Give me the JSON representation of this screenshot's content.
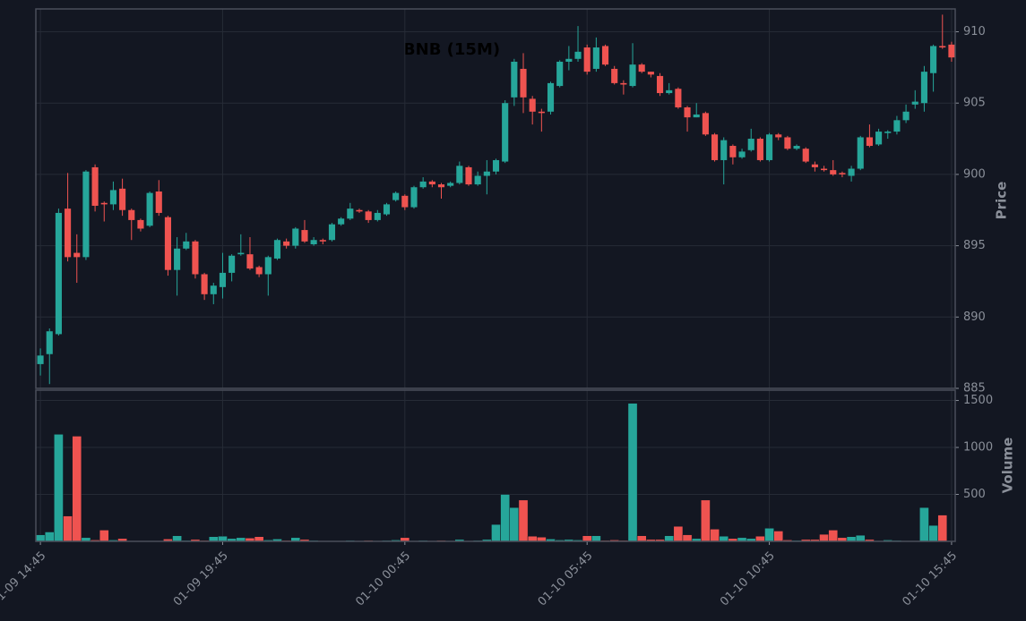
{
  "chart_data": {
    "type": "candlestick",
    "title": "BNB (15M)",
    "y_label": "Price",
    "y2_label": "Volume",
    "up_color": "#26a69a",
    "down_color": "#ef5350",
    "grid": true,
    "xlim": [
      -0.5,
      100.4
    ],
    "xticks": [
      {
        "value": 0,
        "label": "01-09 14:45"
      },
      {
        "value": 20,
        "label": "01-09 19:45"
      },
      {
        "value": 40,
        "label": "01-10 00:45"
      },
      {
        "value": 60,
        "label": "01-10 05:45"
      },
      {
        "value": 80,
        "label": "01-10 10:45"
      },
      {
        "value": 100,
        "label": "01-10 15:45"
      }
    ],
    "ylim": [
      885,
      911.6
    ],
    "yticks": [
      885,
      890,
      895,
      900,
      905,
      910
    ],
    "y2lim": [
      0,
      1610
    ],
    "y2ticks": [
      500,
      1000,
      1500
    ],
    "open": [
      886.7,
      887.4,
      888.8,
      897.6,
      894.5,
      894.2,
      900.5,
      898,
      897.9,
      899,
      897.5,
      896.8,
      896.4,
      898.8,
      897,
      893.3,
      894.8,
      895.3,
      893,
      891.6,
      892.1,
      893.1,
      894.4,
      894.4,
      893.5,
      893,
      894.1,
      895.3,
      895,
      896.1,
      895.1,
      895.4,
      895.4,
      896.5,
      896.9,
      897.5,
      897.4,
      896.8,
      897.2,
      898.2,
      898.5,
      897.7,
      899.1,
      899.5,
      899.3,
      899.2,
      899.4,
      900.5,
      899.3,
      899.9,
      900.2,
      900.9,
      905.4,
      907.4,
      905.3,
      904.4,
      904.4,
      906.2,
      907.9,
      908.1,
      908.9,
      907.4,
      909,
      907.4,
      906.4,
      906.2,
      907.7,
      907.2,
      906.9,
      905.7,
      906,
      904.7,
      904,
      904.3,
      902.8,
      901,
      902,
      901.2,
      901.7,
      902.5,
      901,
      902.8,
      902.6,
      901.8,
      901.8,
      900.7,
      900.4,
      900.3,
      900.1,
      899.9,
      900.4,
      902.6,
      902.1,
      902.9,
      903,
      903.8,
      904.9,
      905,
      907.1,
      909,
      909.1
    ],
    "high": [
      887.8,
      889.2,
      897.6,
      900.1,
      895.8,
      900.3,
      900.7,
      898.1,
      899.5,
      899.7,
      897.6,
      896.9,
      898.8,
      899.6,
      897.1,
      895.6,
      895.9,
      895.4,
      893.1,
      892.4,
      894.5,
      894.4,
      895.8,
      895.6,
      893.6,
      894.3,
      895.5,
      895.5,
      896.3,
      896.8,
      895.6,
      895.5,
      896.6,
      897,
      898,
      897.6,
      897.5,
      897.5,
      898,
      898.8,
      898.6,
      899.2,
      899.8,
      899.6,
      899.4,
      899.5,
      900.9,
      900.6,
      900.2,
      901,
      901.1,
      905.2,
      908.1,
      908.5,
      905.5,
      904.6,
      906.5,
      908,
      909,
      910.4,
      909.1,
      909.6,
      909.1,
      907.6,
      906.6,
      909.2,
      907.8,
      907.2,
      907.1,
      906.4,
      906.1,
      904.8,
      905,
      904.4,
      902.9,
      902.6,
      902.1,
      901.8,
      903.2,
      902.6,
      902.9,
      902.9,
      902.7,
      902.1,
      901.9,
      900.9,
      900.6,
      901,
      900.2,
      900.6,
      902.7,
      903.5,
      903.2,
      903.1,
      904.1,
      904.9,
      905.9,
      907.6,
      909.1,
      911.2,
      909.3
    ],
    "low": [
      885.9,
      885.3,
      888.7,
      893.9,
      892.4,
      894,
      897.4,
      896.7,
      897.5,
      897.1,
      895.4,
      896,
      896.3,
      897.1,
      892.9,
      891.5,
      894.7,
      892.7,
      891.2,
      890.9,
      891.3,
      892.5,
      894.3,
      893.3,
      892.8,
      891.5,
      894,
      894.8,
      894.8,
      895.2,
      895,
      895.1,
      895.3,
      896.4,
      896.8,
      897.3,
      896.6,
      896.7,
      897.1,
      898.1,
      897.5,
      897.6,
      899,
      899.1,
      898.3,
      899.1,
      899.3,
      899.2,
      899.2,
      898.6,
      900,
      900.8,
      904.8,
      904.3,
      903.5,
      903,
      904.2,
      906.1,
      907.3,
      907.9,
      907,
      907.2,
      907.6,
      906.3,
      905.6,
      906.1,
      907.1,
      906.8,
      905.5,
      905.6,
      904.6,
      903,
      904,
      902.7,
      900.9,
      899.3,
      900.7,
      901.1,
      901.6,
      900.9,
      900.9,
      902.4,
      901.7,
      901.7,
      900.8,
      900.2,
      900.2,
      899.9,
      899.8,
      899.5,
      900.3,
      901.9,
      902,
      902.5,
      902.8,
      903.6,
      904.6,
      904.4,
      905.8,
      908.8,
      907.9
    ],
    "close": [
      887.3,
      889,
      897.3,
      894.2,
      894.2,
      900.2,
      897.8,
      897.9,
      898.9,
      897.5,
      896.8,
      896.2,
      898.7,
      897.3,
      893.3,
      894.8,
      895.3,
      893,
      891.6,
      892.2,
      893.1,
      894.3,
      894.5,
      893.4,
      893,
      894.2,
      895.4,
      895,
      896.2,
      895.3,
      895.4,
      895.3,
      896.5,
      896.9,
      897.6,
      897.4,
      896.8,
      897.3,
      897.9,
      898.7,
      897.7,
      899.1,
      899.5,
      899.3,
      899.1,
      899.4,
      900.6,
      899.3,
      899.9,
      900.2,
      901,
      905,
      907.9,
      905.4,
      904.4,
      904.3,
      906.4,
      907.9,
      908.1,
      908.6,
      907.2,
      908.9,
      907.7,
      906.4,
      906.3,
      907.7,
      907.2,
      907,
      905.7,
      905.9,
      904.7,
      904,
      904.2,
      902.8,
      901,
      902.4,
      901.2,
      901.6,
      902.5,
      901,
      902.8,
      902.6,
      901.8,
      902,
      900.9,
      900.5,
      900.3,
      900,
      900,
      900.4,
      902.6,
      902,
      903,
      903,
      903.8,
      904.4,
      905.1,
      907.2,
      909,
      908.9,
      908.2
    ],
    "volume": [
      70,
      100,
      1140,
      270,
      1120,
      40,
      15,
      120,
      15,
      30,
      5,
      5,
      5,
      5,
      25,
      60,
      10,
      20,
      10,
      50,
      55,
      30,
      40,
      35,
      50,
      15,
      25,
      10,
      40,
      20,
      10,
      5,
      5,
      5,
      10,
      5,
      10,
      5,
      10,
      15,
      40,
      5,
      10,
      5,
      10,
      5,
      20,
      5,
      10,
      20,
      180,
      500,
      360,
      440,
      55,
      45,
      25,
      15,
      20,
      15,
      60,
      60,
      10,
      15,
      10,
      1470,
      60,
      20,
      20,
      60,
      160,
      70,
      30,
      440,
      130,
      55,
      30,
      40,
      30,
      55,
      140,
      110,
      15,
      10,
      20,
      20,
      75,
      120,
      40,
      50,
      65,
      20,
      5,
      15,
      10,
      5,
      5,
      360,
      170,
      280,
      5
    ]
  }
}
